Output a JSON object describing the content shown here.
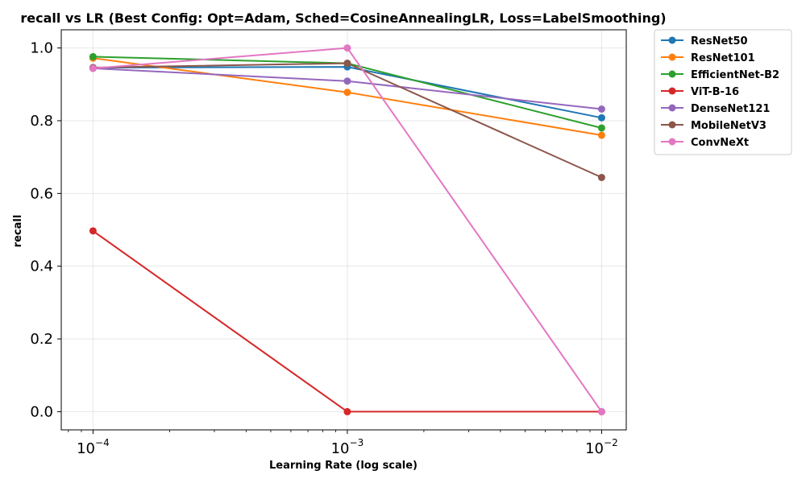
{
  "chart_data": {
    "type": "line",
    "title": "recall vs LR (Best Config: Opt=Adam, Sched=CosineAnnealingLR, Loss=LabelSmoothing)",
    "xlabel": "Learning Rate (log scale)",
    "ylabel": "recall",
    "xscale": "log",
    "x": [
      0.0001,
      0.001,
      0.01
    ],
    "x_tick_labels": [
      {
        "base": "10",
        "exp": "−4"
      },
      {
        "base": "10",
        "exp": "−3"
      },
      {
        "base": "10",
        "exp": "−2"
      }
    ],
    "xlim": [
      7.5e-05,
      0.0125
    ],
    "ylim": [
      -0.05,
      1.05
    ],
    "y_ticks": [
      "0.0",
      "0.2",
      "0.4",
      "0.6",
      "0.8",
      "1.0"
    ],
    "grid": true,
    "legend_position": "outside-right-top",
    "series": [
      {
        "name": "ResNet50",
        "color": "#1f77b4",
        "values": [
          0.946,
          0.948,
          0.808
        ]
      },
      {
        "name": "ResNet101",
        "color": "#ff7f0e",
        "values": [
          0.972,
          0.878,
          0.76
        ]
      },
      {
        "name": "EfficientNet-B2",
        "color": "#2ca02c",
        "values": [
          0.976,
          0.958,
          0.78
        ]
      },
      {
        "name": "ViT-B-16",
        "color": "#d62728",
        "values": [
          0.497,
          0.0,
          0.0
        ]
      },
      {
        "name": "DenseNet121",
        "color": "#9467bd",
        "values": [
          0.944,
          0.909,
          0.832
        ]
      },
      {
        "name": "MobileNetV3",
        "color": "#8c564b",
        "values": [
          0.946,
          0.958,
          0.644
        ]
      },
      {
        "name": "ConvNeXt",
        "color": "#e377c2",
        "values": [
          0.944,
          1.0,
          0.0
        ]
      }
    ]
  }
}
